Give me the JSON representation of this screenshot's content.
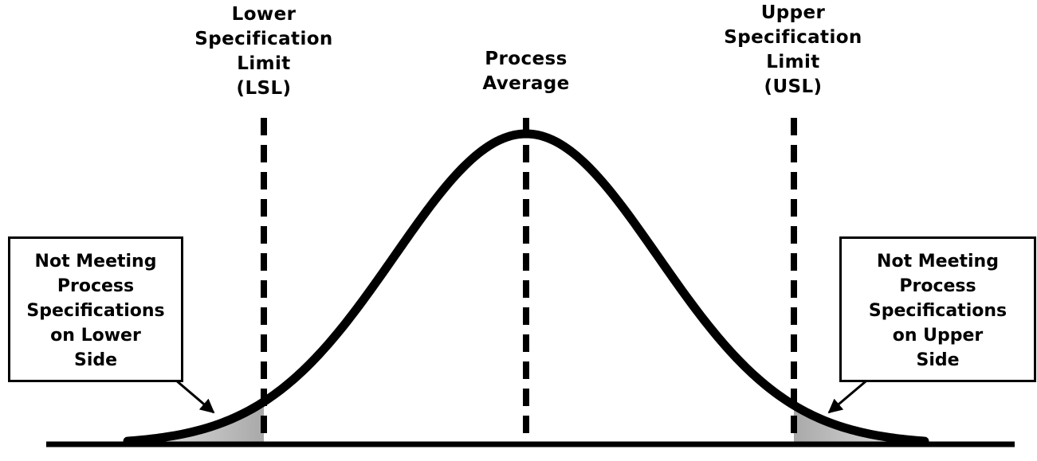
{
  "diagram": {
    "labels": {
      "lsl": [
        "Lower",
        "Specification",
        "Limit",
        "(LSL)"
      ],
      "process_average": [
        "Process",
        "Average"
      ],
      "usl": [
        "Upper",
        "Specification",
        "Limit",
        "(USL)"
      ]
    },
    "callouts": {
      "lower": [
        "Not Meeting",
        "Process",
        "Specifications",
        "on Lower",
        "Side"
      ],
      "upper": [
        "Not Meeting",
        "Process",
        "Specifications",
        "on Upper",
        "Side"
      ]
    },
    "colors": {
      "curve": "#000000",
      "tail_fill": "#b9b9b9",
      "background": "#ffffff"
    }
  }
}
